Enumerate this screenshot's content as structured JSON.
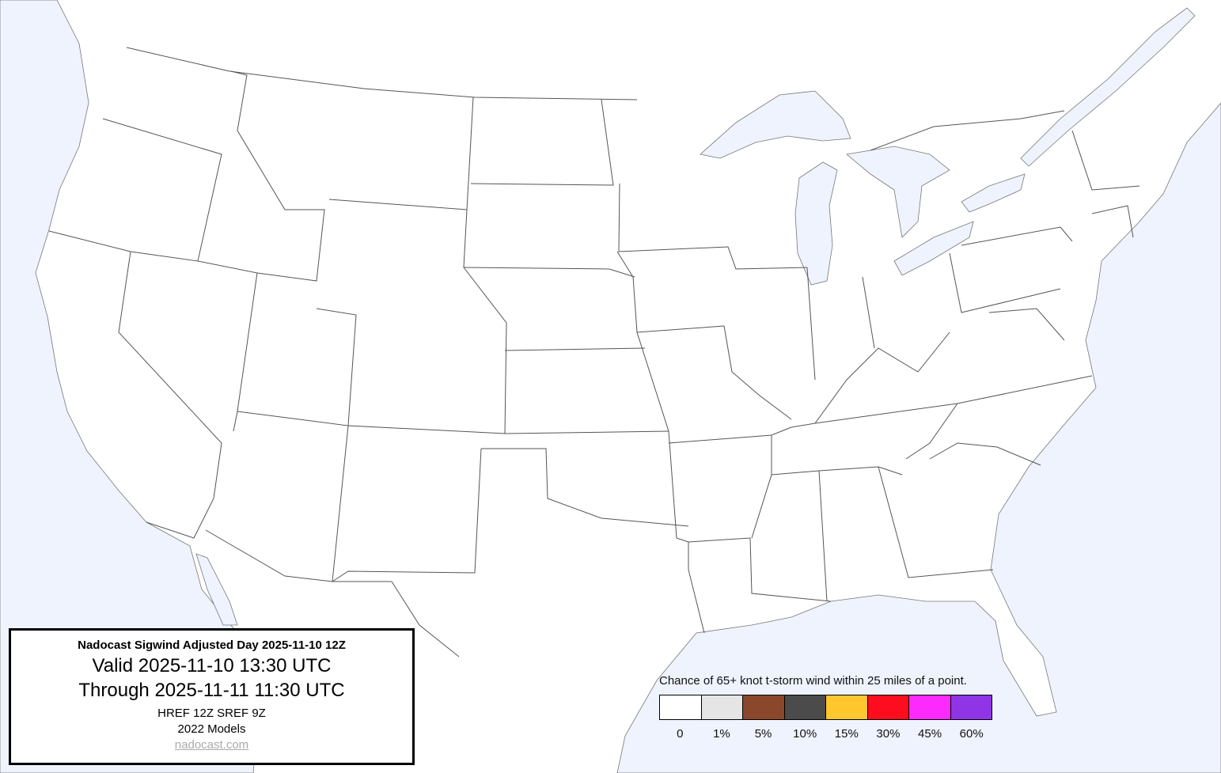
{
  "info": {
    "title": "Nadocast Sigwind Adjusted Day 2025-11-10 12Z",
    "valid": "Valid 2025-11-10 13:30 UTC",
    "through": "Through 2025-11-11 11:30 UTC",
    "models": "HREF 12Z SREF 9Z",
    "model_year": "2022 Models",
    "link": "nadocast.com"
  },
  "legend": {
    "title": "Chance of 65+ knot t-storm wind within 25 miles of a point.",
    "bins": [
      {
        "label": "0",
        "color": "#ffffff"
      },
      {
        "label": "1%",
        "color": "#e5e5e5"
      },
      {
        "label": "5%",
        "color": "#8b472b"
      },
      {
        "label": "10%",
        "color": "#4b4b4b"
      },
      {
        "label": "15%",
        "color": "#ffc62e"
      },
      {
        "label": "30%",
        "color": "#fd0d1d"
      },
      {
        "label": "45%",
        "color": "#fd2afd"
      },
      {
        "label": "60%",
        "color": "#9035e6"
      }
    ]
  },
  "map": {
    "water_color": "#eef3fd",
    "land_color": "#ffffff",
    "border_color": "#555555"
  }
}
